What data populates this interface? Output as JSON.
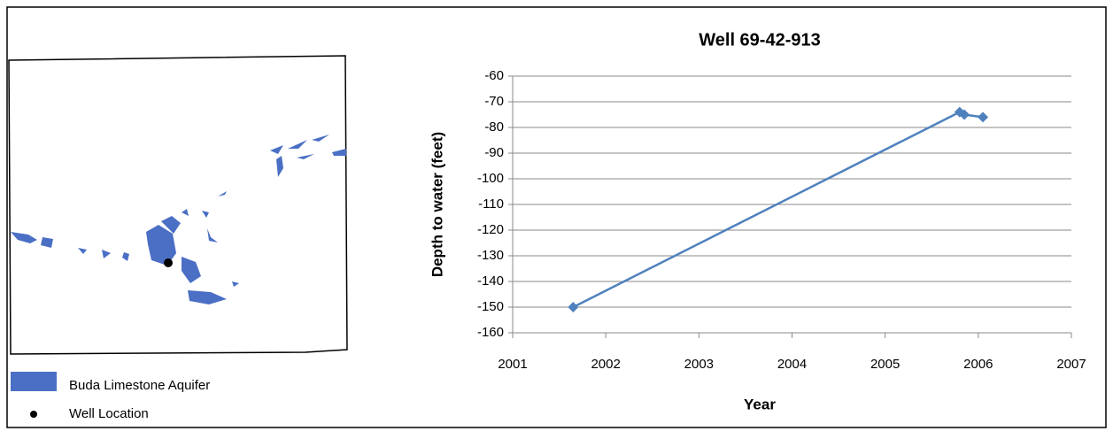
{
  "chart_data": {
    "type": "line",
    "title": "Well 69-42-913",
    "x_label": "Year",
    "y_label": "Depth to water (feet)",
    "x": [
      2001.65,
      2005.8,
      2005.85,
      2006.05
    ],
    "values": [
      -150,
      -74,
      -75,
      -76
    ],
    "color": "#4f81bd",
    "xlim": [
      2001,
      2007
    ],
    "xticks": [
      2001,
      2002,
      2003,
      2004,
      2005,
      2006,
      2007
    ],
    "ylim": [
      -160,
      -60
    ],
    "yticks": [
      -160,
      -150,
      -140,
      -130,
      -120,
      -110,
      -100,
      -90,
      -80,
      -70,
      -60
    ],
    "grid": true
  },
  "map": {
    "legend": [
      "Buda Limestone Aquifer",
      "Well Location"
    ]
  }
}
